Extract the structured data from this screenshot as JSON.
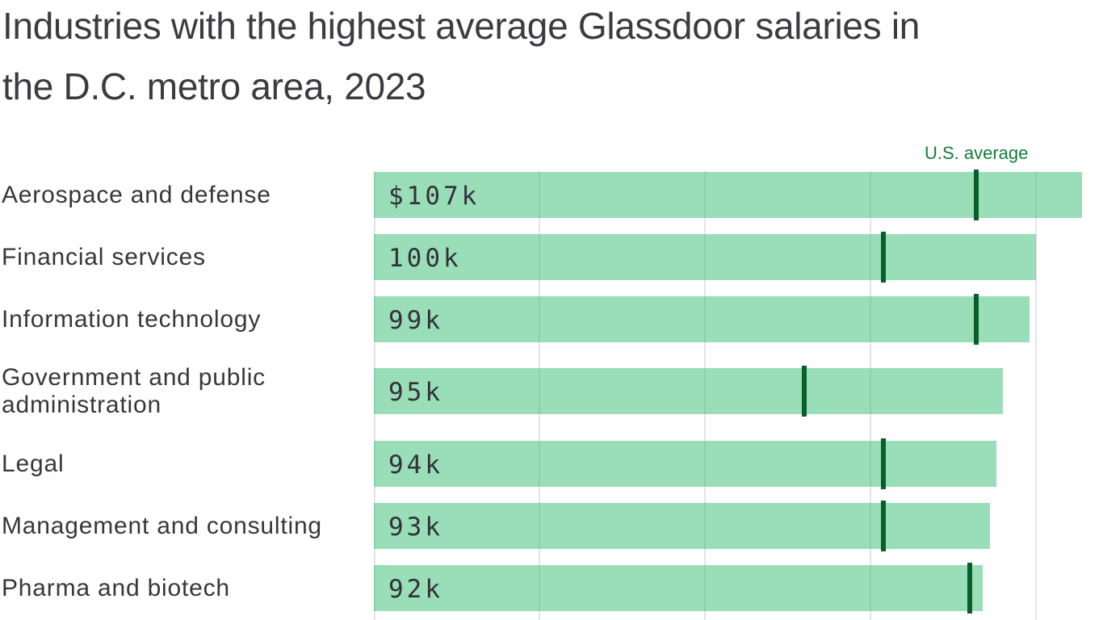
{
  "title": "Industries with the highest average Glassdoor salaries in the D.C. metro area, 2023",
  "annotation": {
    "us_average_label": "U.S. average"
  },
  "colors": {
    "background": "#ffffff",
    "title_text": "#3b3b40",
    "label_text": "#37373b",
    "value_text": "#323237",
    "bar_solid": "#99ddb9",
    "bar_fill": "rgba(51,187,115,0.5)",
    "tick": "#0a5e2b",
    "us_average_text": "#187a3e",
    "gridline": "#e4e4e4"
  },
  "chart_data": {
    "type": "bar",
    "orientation": "horizontal",
    "title": "Industries with the highest average Glassdoor salaries in the D.C. metro area, 2023",
    "unit": "USD thousands per year",
    "x_axis": {
      "min_k": 0,
      "max_k": 110,
      "gridline_interval_k": 25,
      "gridlines_k": [
        0,
        25,
        50,
        75,
        100
      ],
      "tick_labels_visible": false
    },
    "legend": {
      "marker_label": "U.S. average",
      "marker_style": "dark-green vertical tick per bar"
    },
    "rows": [
      {
        "industry": "Aerospace and defense",
        "dc_salary_k": 107,
        "value_label": "$107k",
        "us_average_k": 91
      },
      {
        "industry": "Financial services",
        "dc_salary_k": 100,
        "value_label": "100k",
        "us_average_k": 77
      },
      {
        "industry": "Information technology",
        "dc_salary_k": 99,
        "value_label": "99k",
        "us_average_k": 91
      },
      {
        "industry": "Government and public administration",
        "dc_salary_k": 95,
        "value_label": "95k",
        "us_average_k": 65
      },
      {
        "industry": "Legal",
        "dc_salary_k": 94,
        "value_label": "94k",
        "us_average_k": 77
      },
      {
        "industry": "Management and consulting",
        "dc_salary_k": 93,
        "value_label": "93k",
        "us_average_k": 77
      },
      {
        "industry": "Pharma and biotech",
        "dc_salary_k": 92,
        "value_label": "92k",
        "us_average_k": 90
      }
    ]
  }
}
